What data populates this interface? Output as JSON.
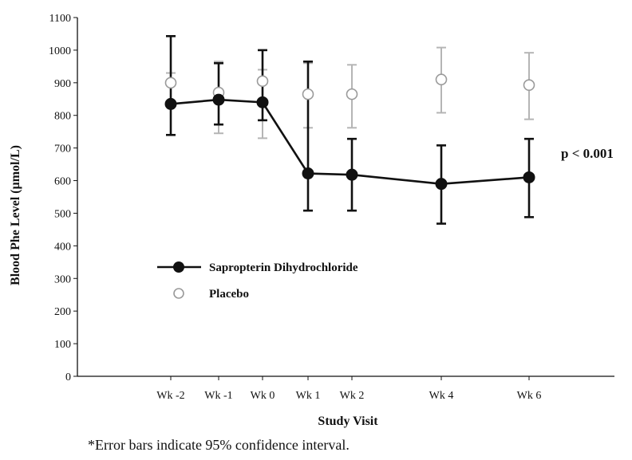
{
  "chart_data": {
    "type": "line",
    "categories": [
      "Wk -2",
      "Wk -1",
      "Wk 0",
      "Wk 1",
      "Wk 2",
      "Wk 4",
      "Wk 6"
    ],
    "x": [
      -2,
      -1,
      0,
      1,
      2,
      4,
      6
    ],
    "xlabel": "Study Visit",
    "ylabel": "Blood Phe Level (µmol/L)",
    "ylim": [
      0,
      1100
    ],
    "yticks": [
      0,
      100,
      200,
      300,
      400,
      500,
      600,
      700,
      800,
      900,
      1000,
      1100
    ],
    "grid": false,
    "legend_placement": "center-left",
    "series": [
      {
        "name": "Sapropterin Dihydrochloride",
        "marker": "filled-circle",
        "color": "#111111",
        "values": [
          835,
          848,
          840,
          622,
          618,
          590,
          610
        ],
        "ci_low": [
          740,
          772,
          785,
          508,
          508,
          468,
          488
        ],
        "ci_high": [
          1043,
          960,
          1000,
          965,
          728,
          708,
          728
        ]
      },
      {
        "name": "Placebo",
        "marker": "open-circle",
        "color": "#888888",
        "values": [
          900,
          870,
          905,
          865,
          865,
          910,
          893
        ],
        "ci_low": [
          740,
          745,
          730,
          762,
          762,
          808,
          788
        ],
        "ci_high": [
          930,
          965,
          940,
          960,
          955,
          1008,
          992
        ]
      }
    ],
    "annotations": [
      {
        "text": "p < 0.001"
      }
    ]
  },
  "footnote": "*Error bars indicate 95% confidence interval."
}
